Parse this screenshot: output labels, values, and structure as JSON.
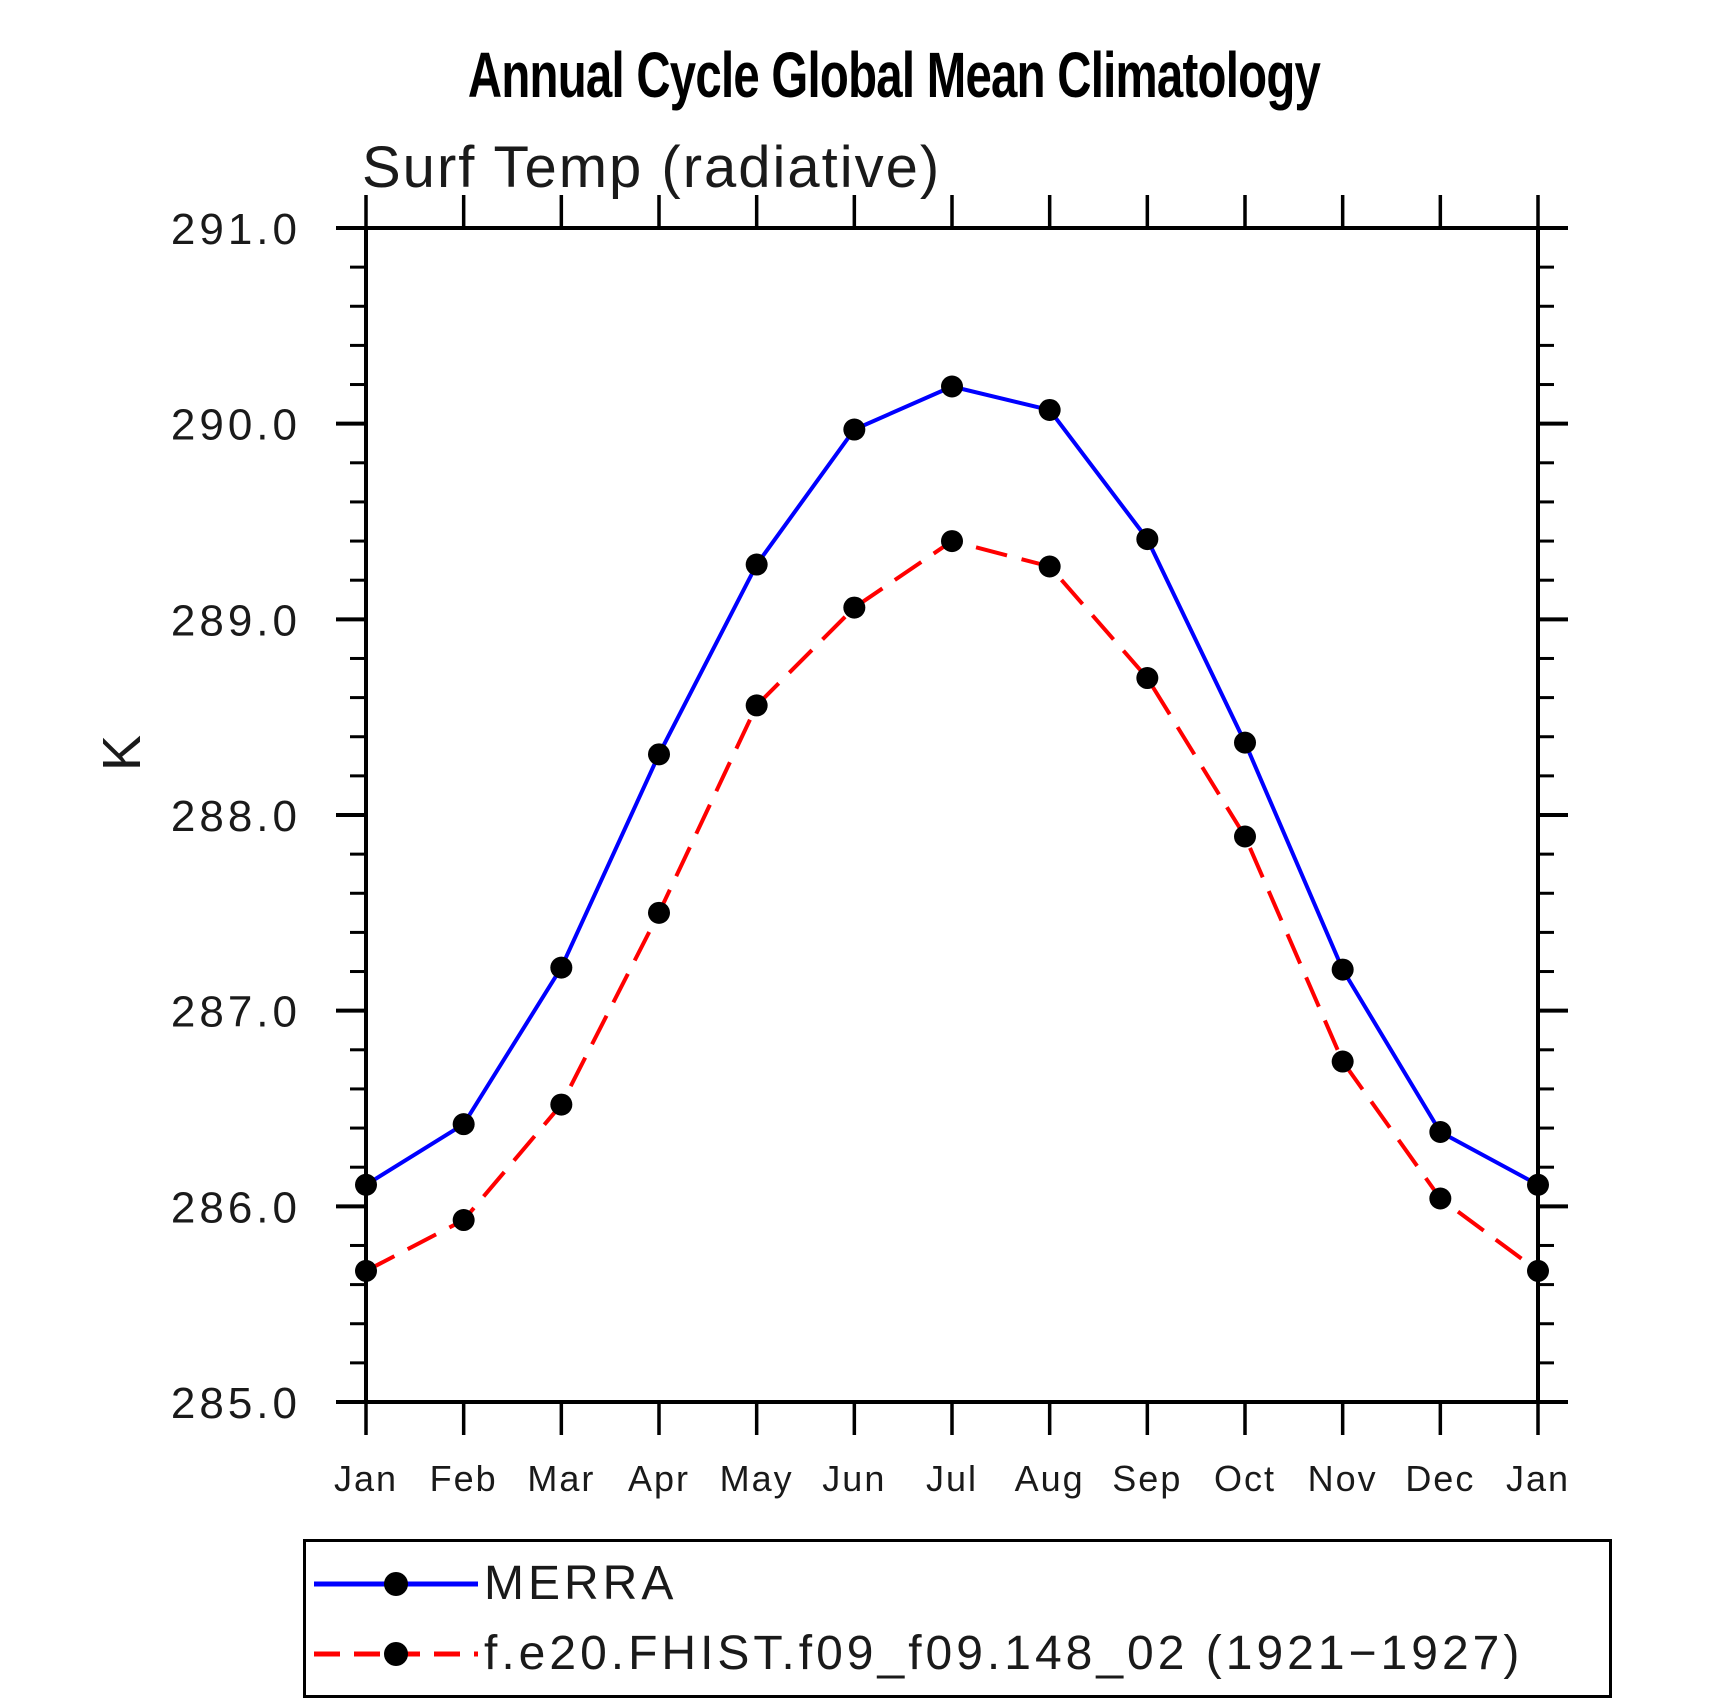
{
  "chart_data": {
    "type": "line",
    "title": "Annual Cycle Global Mean Climatology",
    "subtitle": "Surf Temp (radiative)",
    "ylabel": "K",
    "categories": [
      "Jan",
      "Feb",
      "Mar",
      "Apr",
      "May",
      "Jun",
      "Jul",
      "Aug",
      "Sep",
      "Oct",
      "Nov",
      "Dec",
      "Jan"
    ],
    "ylim": [
      285.0,
      291.0
    ],
    "y_major_step": 1.0,
    "y_minor_step": 0.2,
    "y_tick_labels": [
      "285.0",
      "286.0",
      "287.0",
      "288.0",
      "289.0",
      "290.0",
      "291.0"
    ],
    "grid": false,
    "legend_position": "bottom",
    "marker_color": "#000000",
    "axis_color": "#000000",
    "series": [
      {
        "name": "MERRA",
        "color": "#0000ff",
        "style": "solid",
        "marker": "circle",
        "values": [
          286.11,
          286.42,
          287.22,
          288.31,
          289.28,
          289.97,
          290.19,
          290.07,
          289.41,
          288.37,
          287.21,
          286.38,
          286.11
        ]
      },
      {
        "name": "f.e20.FHIST.f09_f09.148_02 (1921−1927)",
        "color": "#ff0000",
        "style": "dashed",
        "marker": "circle",
        "values": [
          285.67,
          285.93,
          286.52,
          287.5,
          288.56,
          289.06,
          289.4,
          289.27,
          288.7,
          287.89,
          286.74,
          286.04,
          285.67
        ]
      }
    ]
  }
}
